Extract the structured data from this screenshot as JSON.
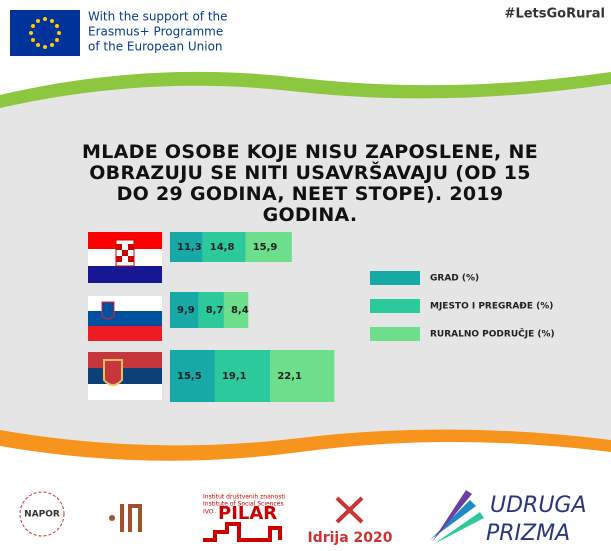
{
  "header": {
    "eu_text": [
      "With the support of the",
      "Erasmus+ Programme",
      "of the European Union"
    ],
    "hashtag": "#LetsGoRural"
  },
  "chart_data": {
    "type": "stacked-bar-horizontal",
    "title": "MLADE OSOBE KOJE NISU ZAPOSLENE, NE OBRAZUJU SE NITI USAVRŠAVAJU (OD 15 DO 29 GODINA, NEET STOPE). 2019 GODINA.",
    "categories": [
      null,
      null,
      null
    ],
    "series": [
      {
        "name": "GRAD (%)",
        "color": "#17a9a5",
        "values": [
          11.3,
          9.9,
          15.5
        ],
        "value_labels": [
          "11,3",
          "9,9",
          "15,5"
        ]
      },
      {
        "name": "MJESTO I PREGRAĐE (%)",
        "color": "#2bc99b",
        "values": [
          14.8,
          8.7,
          19.1
        ],
        "value_labels": [
          "14,8",
          "8,7",
          "19,1"
        ]
      },
      {
        "name": "RURALNO PODRUČJE (%)",
        "color": "#6ddf8c",
        "values": [
          15.9,
          8.4,
          22.1
        ],
        "value_labels": [
          "15,9",
          "8,4",
          "22,1"
        ]
      }
    ]
  },
  "footer": {
    "napor": "NAPOR",
    "pilar_small": [
      "Institut društvenih znanosti",
      "Institute of Social Sciences",
      "IVO"
    ],
    "pilar": "PILAR",
    "idrija": "Idrija 2020",
    "prizma": [
      "UDRUGA",
      "PRIZMA"
    ]
  }
}
